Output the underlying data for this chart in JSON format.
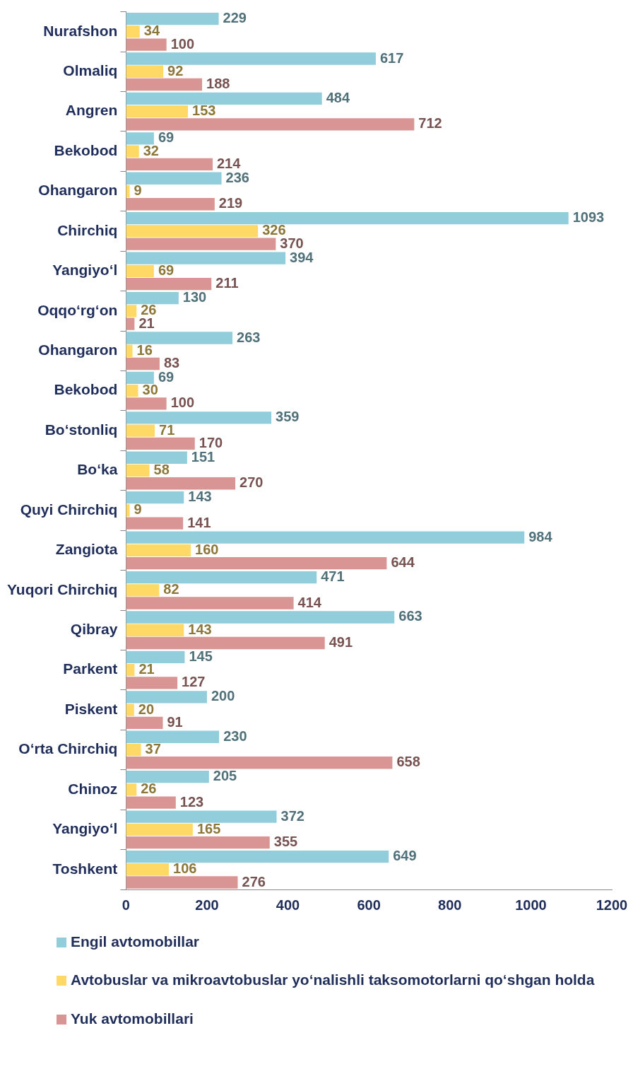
{
  "chart_data": {
    "type": "bar",
    "orientation": "horizontal",
    "categories": [
      "Nurafshon",
      "Olmaliq",
      "Angren",
      "Bekobod",
      "Ohangaron",
      "Chirchiq",
      "Yangiyo‘l",
      "Oqqo‘rg‘on",
      "Ohangaron",
      "Bekobod",
      "Bo‘stonliq",
      "Bo‘ka",
      "Quyi Chirchiq",
      "Zangiota",
      "Yuqori Chirchiq",
      "Qibray",
      "Parkent",
      "Piskent",
      "O‘rta Chirchiq",
      "Chinoz",
      "Yangiyo‘l",
      "Toshkent"
    ],
    "series": [
      {
        "name": "Engil avtomobillar",
        "color": "#92cddc",
        "values": [
          229,
          617,
          484,
          69,
          236,
          1093,
          394,
          130,
          263,
          69,
          359,
          151,
          143,
          984,
          471,
          663,
          145,
          200,
          230,
          205,
          372,
          649
        ]
      },
      {
        "name": "Avtobuslar va mikroavtobuslar yo‘nalishli taksomotorlarni qo‘shgan holda",
        "color": "#ffd966",
        "values": [
          34,
          92,
          153,
          32,
          9,
          326,
          69,
          26,
          16,
          30,
          71,
          58,
          9,
          160,
          82,
          143,
          21,
          20,
          37,
          26,
          165,
          106
        ]
      },
      {
        "name": "Yuk avtomobillari",
        "color": "#d99594",
        "values": [
          100,
          188,
          712,
          214,
          219,
          370,
          211,
          21,
          83,
          100,
          170,
          270,
          141,
          644,
          414,
          491,
          127,
          91,
          658,
          123,
          355,
          276
        ]
      }
    ],
    "xlim": [
      0,
      1200
    ],
    "xticks": [
      0,
      200,
      400,
      600,
      800,
      1000,
      1200
    ],
    "grid": false,
    "legend": "bottom",
    "data_labels": true
  }
}
